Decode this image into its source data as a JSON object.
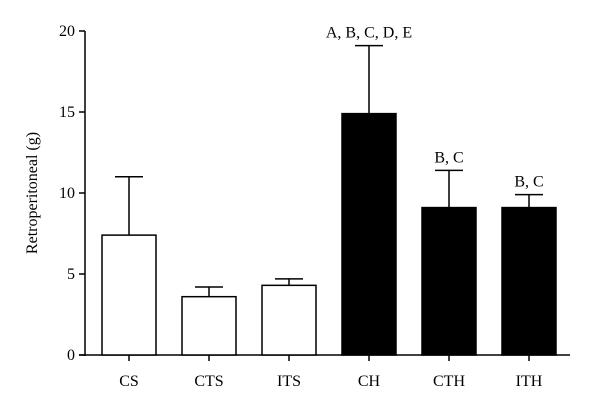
{
  "chart_data": {
    "type": "bar",
    "title": "",
    "xlabel": "",
    "ylabel": "Retroperitoneal (g)",
    "ylim": [
      0,
      20
    ],
    "yticks": [
      0,
      5,
      10,
      15,
      20
    ],
    "grid": false,
    "legend": "none",
    "categories": [
      "CS",
      "CTS",
      "ITS",
      "CH",
      "CTH",
      "ITH"
    ],
    "values": [
      7.4,
      3.6,
      4.3,
      14.9,
      9.1,
      9.1
    ],
    "error_upper": [
      11.0,
      4.2,
      4.7,
      19.1,
      11.4,
      9.9
    ],
    "fill_colors": [
      "#ffffff",
      "#ffffff",
      "#ffffff",
      "#000000",
      "#000000",
      "#000000"
    ],
    "annotations": [
      "",
      "",
      "",
      "A, B, C, D, E",
      "B, C",
      "B, C"
    ]
  }
}
